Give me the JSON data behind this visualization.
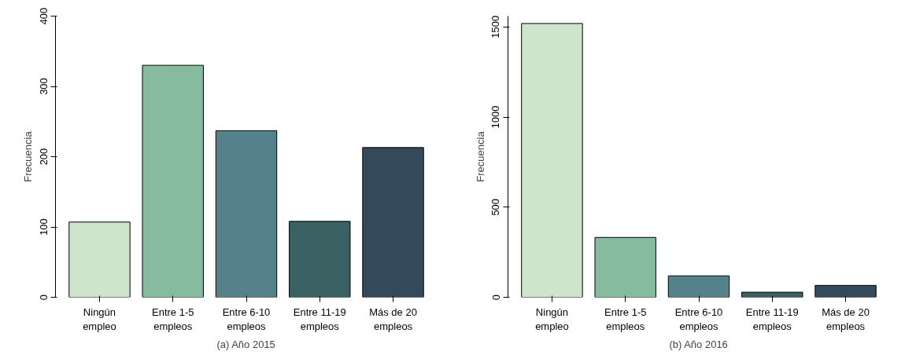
{
  "chart_data": [
    {
      "type": "bar",
      "xlabel": "(a) Año 2015",
      "ylabel": "Frecuencia",
      "categories": [
        "Ningún\nempleo",
        "Entre 1-5\nempleos",
        "Entre 6-10\nempleos",
        "Entre 11-19\nempleos",
        "Más de 20\nempleos"
      ],
      "values": [
        107,
        330,
        237,
        108,
        213
      ],
      "colors": [
        "#cce5cc",
        "#86bba0",
        "#55828a",
        "#3a6262",
        "#344a5a"
      ],
      "ylim": [
        0,
        400
      ],
      "yticks": [
        0,
        100,
        200,
        300,
        400
      ],
      "grid": false
    },
    {
      "type": "bar",
      "xlabel": "(b) Año 2016",
      "ylabel": "Frecuencia",
      "categories": [
        "Ningún\nempleo",
        "Entre 1-5\nempleos",
        "Entre 6-10\nempleos",
        "Entre 11-19\nempleos",
        "Más de 20\nempleos"
      ],
      "values": [
        1519,
        332,
        119,
        28,
        66
      ],
      "colors": [
        "#cce5cc",
        "#86bba0",
        "#55828a",
        "#3a6262",
        "#344a5a"
      ],
      "ylim": [
        0,
        1560
      ],
      "yticks": [
        0,
        500,
        1000,
        1500
      ],
      "grid": false
    }
  ]
}
